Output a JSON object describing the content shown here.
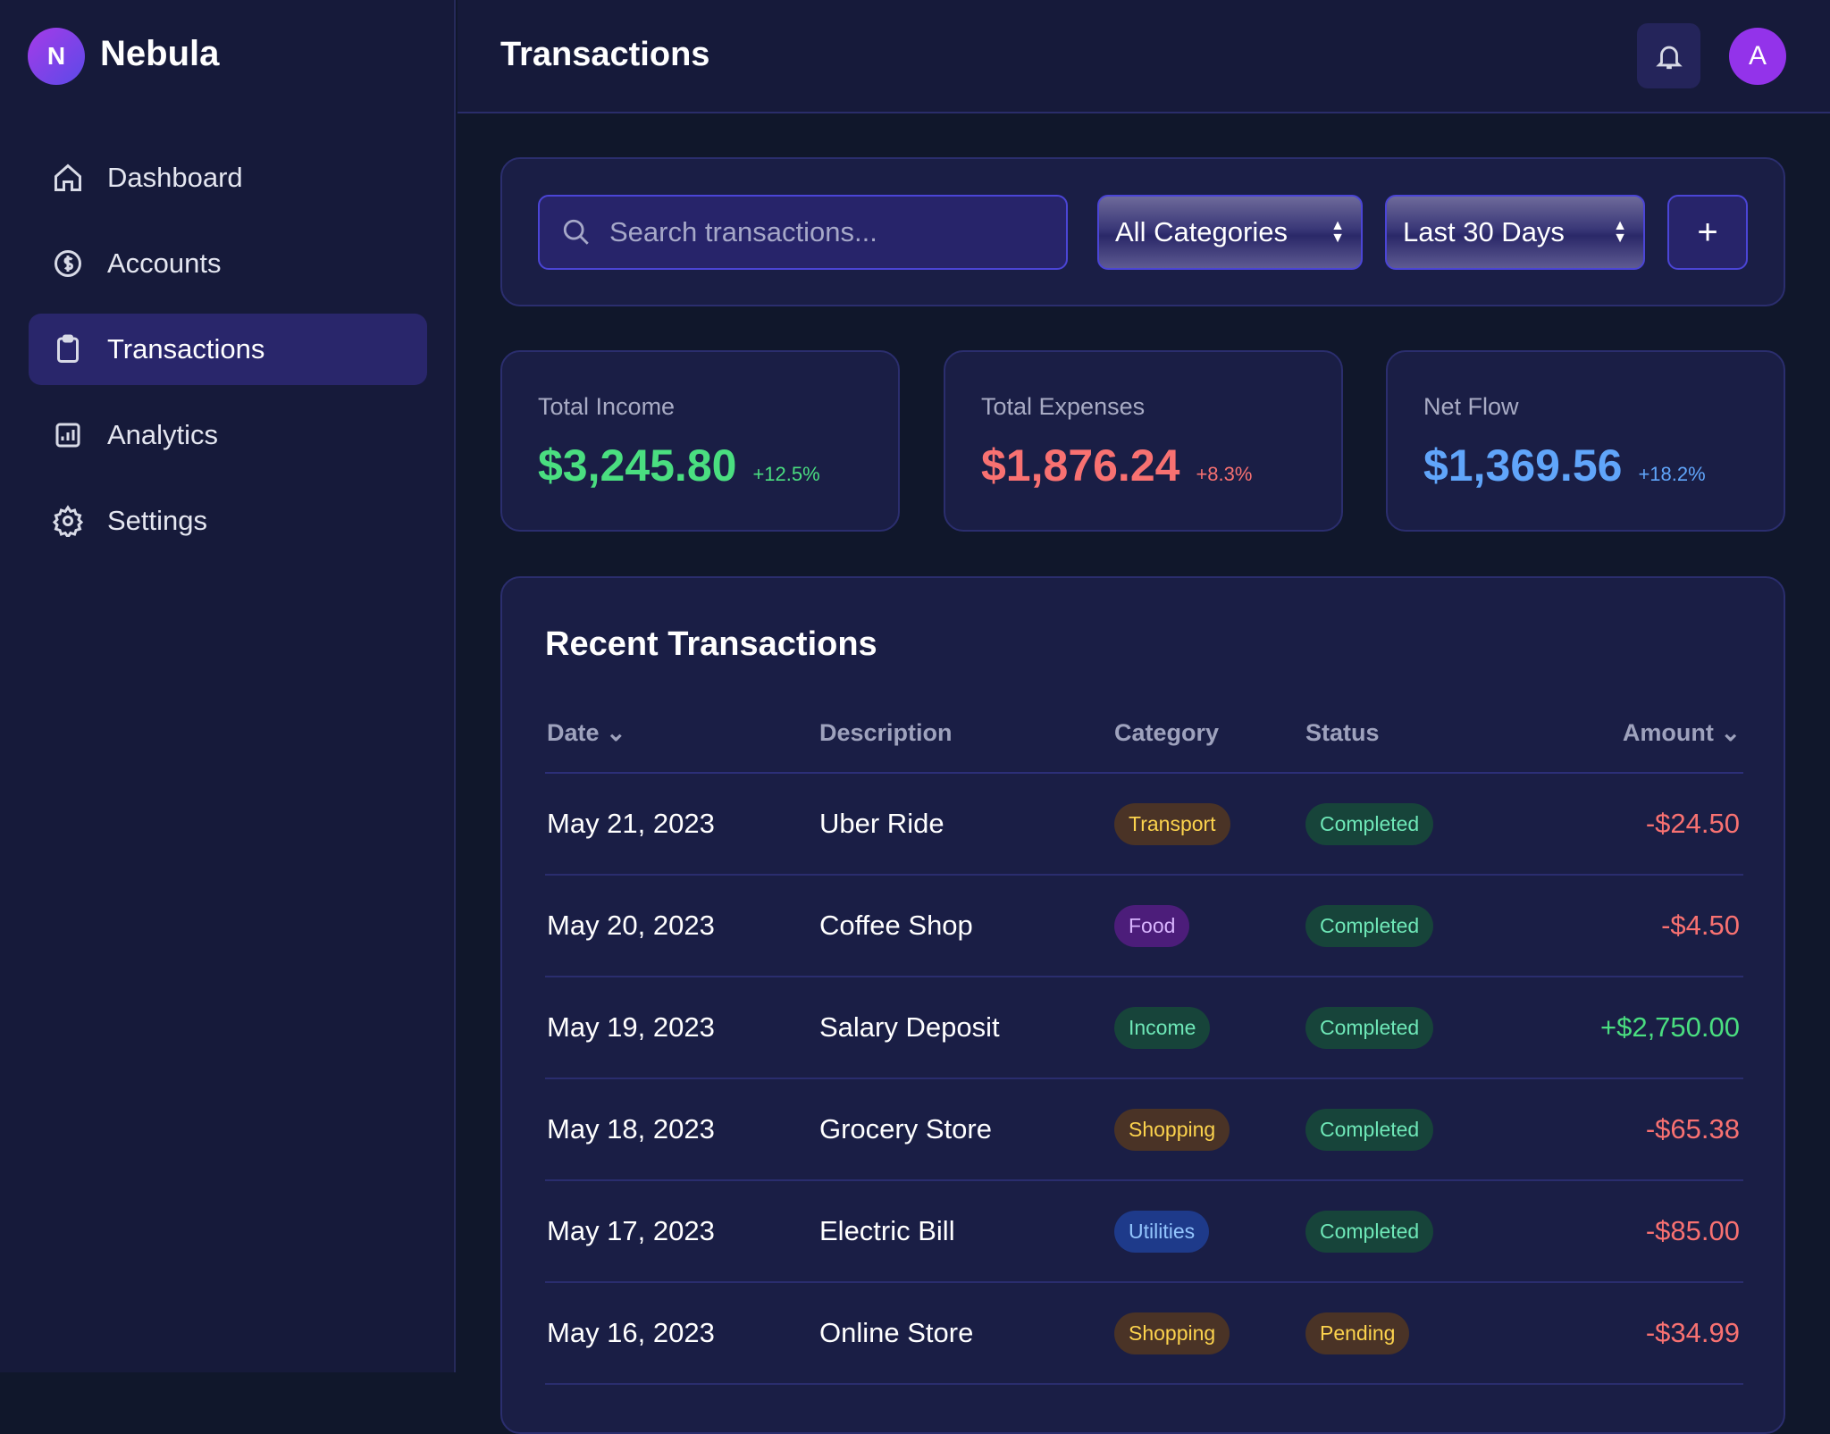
{
  "app": {
    "name": "Nebula",
    "logo_letter": "N"
  },
  "sidebar": {
    "items": [
      {
        "label": "Dashboard",
        "icon": "home-icon"
      },
      {
        "label": "Accounts",
        "icon": "dollar-circle-icon"
      },
      {
        "label": "Transactions",
        "icon": "clipboard-icon",
        "active": true
      },
      {
        "label": "Analytics",
        "icon": "chart-icon"
      },
      {
        "label": "Settings",
        "icon": "gear-icon"
      }
    ]
  },
  "header": {
    "title": "Transactions",
    "avatar_letter": "A"
  },
  "filters": {
    "search_placeholder": "Search transactions...",
    "category": "All Categories",
    "period": "Last 30 Days",
    "add_label": "+"
  },
  "stats": [
    {
      "label": "Total Income",
      "value": "$3,245.80",
      "change": "+12.5%",
      "color": "#4ade80"
    },
    {
      "label": "Total Expenses",
      "value": "$1,876.24",
      "change": "+8.3%",
      "color": "#f87171"
    },
    {
      "label": "Net Flow",
      "value": "$1,369.56",
      "change": "+18.2%",
      "color": "#60a5fa"
    }
  ],
  "table": {
    "title": "Recent Transactions",
    "columns": [
      "Date",
      "Description",
      "Category",
      "Status",
      "Amount"
    ],
    "rows": [
      {
        "date": "May 21, 2023",
        "desc": "Uber Ride",
        "cat": "Transport",
        "status": "Completed",
        "amount": "-$24.50"
      },
      {
        "date": "May 20, 2023",
        "desc": "Coffee Shop",
        "cat": "Food",
        "status": "Completed",
        "amount": "-$4.50"
      },
      {
        "date": "May 19, 2023",
        "desc": "Salary Deposit",
        "cat": "Income",
        "status": "Completed",
        "amount": "+$2,750.00"
      },
      {
        "date": "May 18, 2023",
        "desc": "Grocery Store",
        "cat": "Shopping",
        "status": "Completed",
        "amount": "-$65.38"
      },
      {
        "date": "May 17, 2023",
        "desc": "Electric Bill",
        "cat": "Utilities",
        "status": "Completed",
        "amount": "-$85.00"
      },
      {
        "date": "May 16, 2023",
        "desc": "Online Store",
        "cat": "Shopping",
        "status": "Pending",
        "amount": "-$34.99"
      }
    ]
  }
}
